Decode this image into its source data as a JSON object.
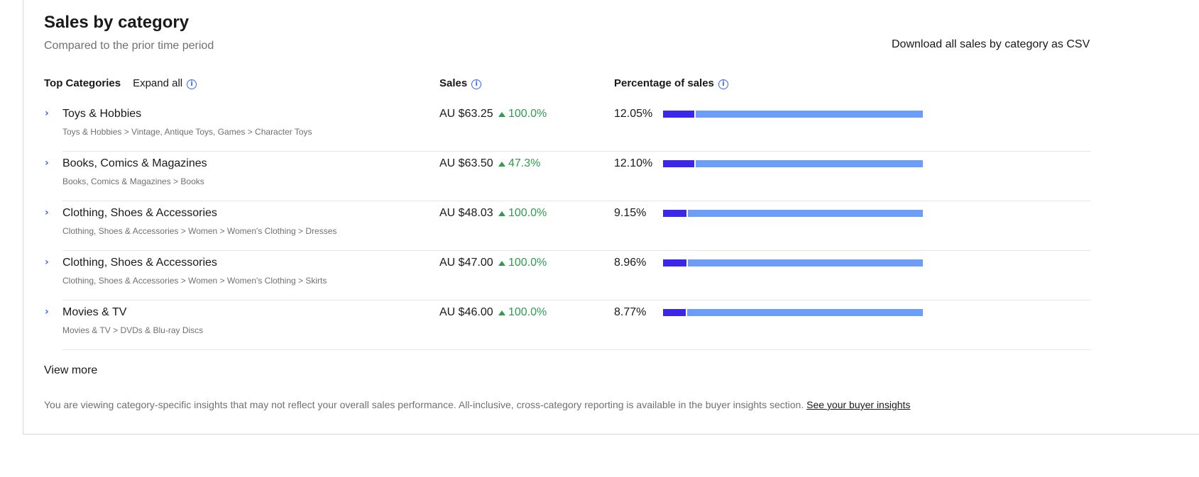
{
  "section": {
    "title": "Sales by category",
    "subtitle": "Compared to the prior time period",
    "download_label": "Download all sales by category as CSV"
  },
  "headers": {
    "top_categories": "Top Categories",
    "expand_all": "Expand all",
    "sales": "Sales",
    "percentage": "Percentage of sales",
    "info_icon": "i"
  },
  "accent_colors": {
    "link_blue": "#3665f3",
    "positive_green": "#2e9c4b",
    "bar_dark": "#3b27e8",
    "bar_light": "#6c9ef8"
  },
  "icons": {
    "expand": "chevron-right-icon",
    "info": "info-icon",
    "trend": "triangle-up-icon",
    "chevron_glyph": "›"
  },
  "rows": [
    {
      "name": "Toys & Hobbies",
      "path": "Toys & Hobbies > Vintage, Antique Toys, Games > Character Toys",
      "sales": "AU $63.25",
      "change": "100.0%",
      "percentage": "12.05%",
      "share": 12.05
    },
    {
      "name": "Books, Comics & Magazines",
      "path": "Books, Comics & Magazines > Books",
      "sales": "AU $63.50",
      "change": "47.3%",
      "percentage": "12.10%",
      "share": 12.1
    },
    {
      "name": "Clothing, Shoes & Accessories",
      "path": "Clothing, Shoes & Accessories > Women > Women's Clothing > Dresses",
      "sales": "AU $48.03",
      "change": "100.0%",
      "percentage": "9.15%",
      "share": 9.15
    },
    {
      "name": "Clothing, Shoes & Accessories",
      "path": "Clothing, Shoes & Accessories > Women > Women's Clothing > Skirts",
      "sales": "AU $47.00",
      "change": "100.0%",
      "percentage": "8.96%",
      "share": 8.96
    },
    {
      "name": "Movies & TV",
      "path": "Movies & TV > DVDs & Blu-ray Discs",
      "sales": "AU $46.00",
      "change": "100.0%",
      "percentage": "8.77%",
      "share": 8.77
    }
  ],
  "view_more": "View more",
  "footnote": {
    "text": "You are viewing category-specific insights that may not reflect your overall sales performance. All-inclusive, cross-category reporting is available in the buyer insights section.",
    "link": "See your buyer insights"
  }
}
